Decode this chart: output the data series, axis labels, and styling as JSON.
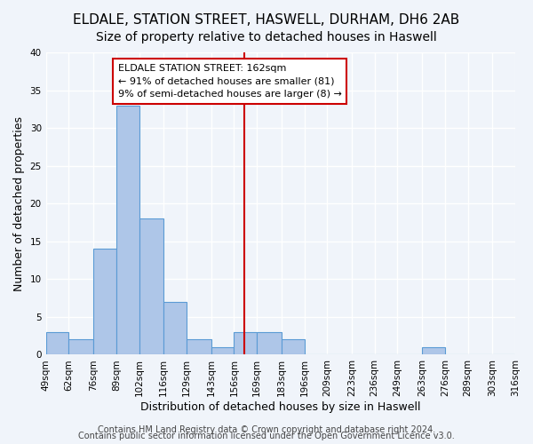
{
  "title": "ELDALE, STATION STREET, HASWELL, DURHAM, DH6 2AB",
  "subtitle": "Size of property relative to detached houses in Haswell",
  "xlabel": "Distribution of detached houses by size in Haswell",
  "ylabel": "Number of detached properties",
  "bar_edges": [
    49,
    62,
    76,
    89,
    102,
    116,
    129,
    143,
    156,
    169,
    183,
    196,
    209,
    223,
    236,
    249,
    263,
    276,
    289,
    303,
    316
  ],
  "bar_heights": [
    3,
    2,
    14,
    33,
    18,
    7,
    2,
    1,
    3,
    3,
    2,
    0,
    0,
    0,
    0,
    0,
    1,
    0,
    0,
    0
  ],
  "bar_color": "#aec6e8",
  "bar_edge_color": "#5b9bd5",
  "vline_x": 162,
  "vline_color": "#cc0000",
  "annotation_title": "ELDALE STATION STREET: 162sqm",
  "annotation_line1": "← 91% of detached houses are smaller (81)",
  "annotation_line2": "9% of semi-detached houses are larger (8) →",
  "annotation_box_color": "#ffffff",
  "annotation_box_edge": "#cc0000",
  "ylim": [
    0,
    40
  ],
  "yticks": [
    0,
    5,
    10,
    15,
    20,
    25,
    30,
    35,
    40
  ],
  "tick_labels": [
    "49sqm",
    "62sqm",
    "76sqm",
    "89sqm",
    "102sqm",
    "116sqm",
    "129sqm",
    "143sqm",
    "156sqm",
    "169sqm",
    "183sqm",
    "196sqm",
    "209sqm",
    "223sqm",
    "236sqm",
    "249sqm",
    "263sqm",
    "276sqm",
    "289sqm",
    "303sqm",
    "316sqm"
  ],
  "footer1": "Contains HM Land Registry data © Crown copyright and database right 2024.",
  "footer2": "Contains public sector information licensed under the Open Government Licence v3.0.",
  "background_color": "#f0f4fa",
  "grid_color": "#ffffff",
  "title_fontsize": 11,
  "subtitle_fontsize": 10,
  "axis_label_fontsize": 9,
  "tick_fontsize": 7.5,
  "footer_fontsize": 7
}
